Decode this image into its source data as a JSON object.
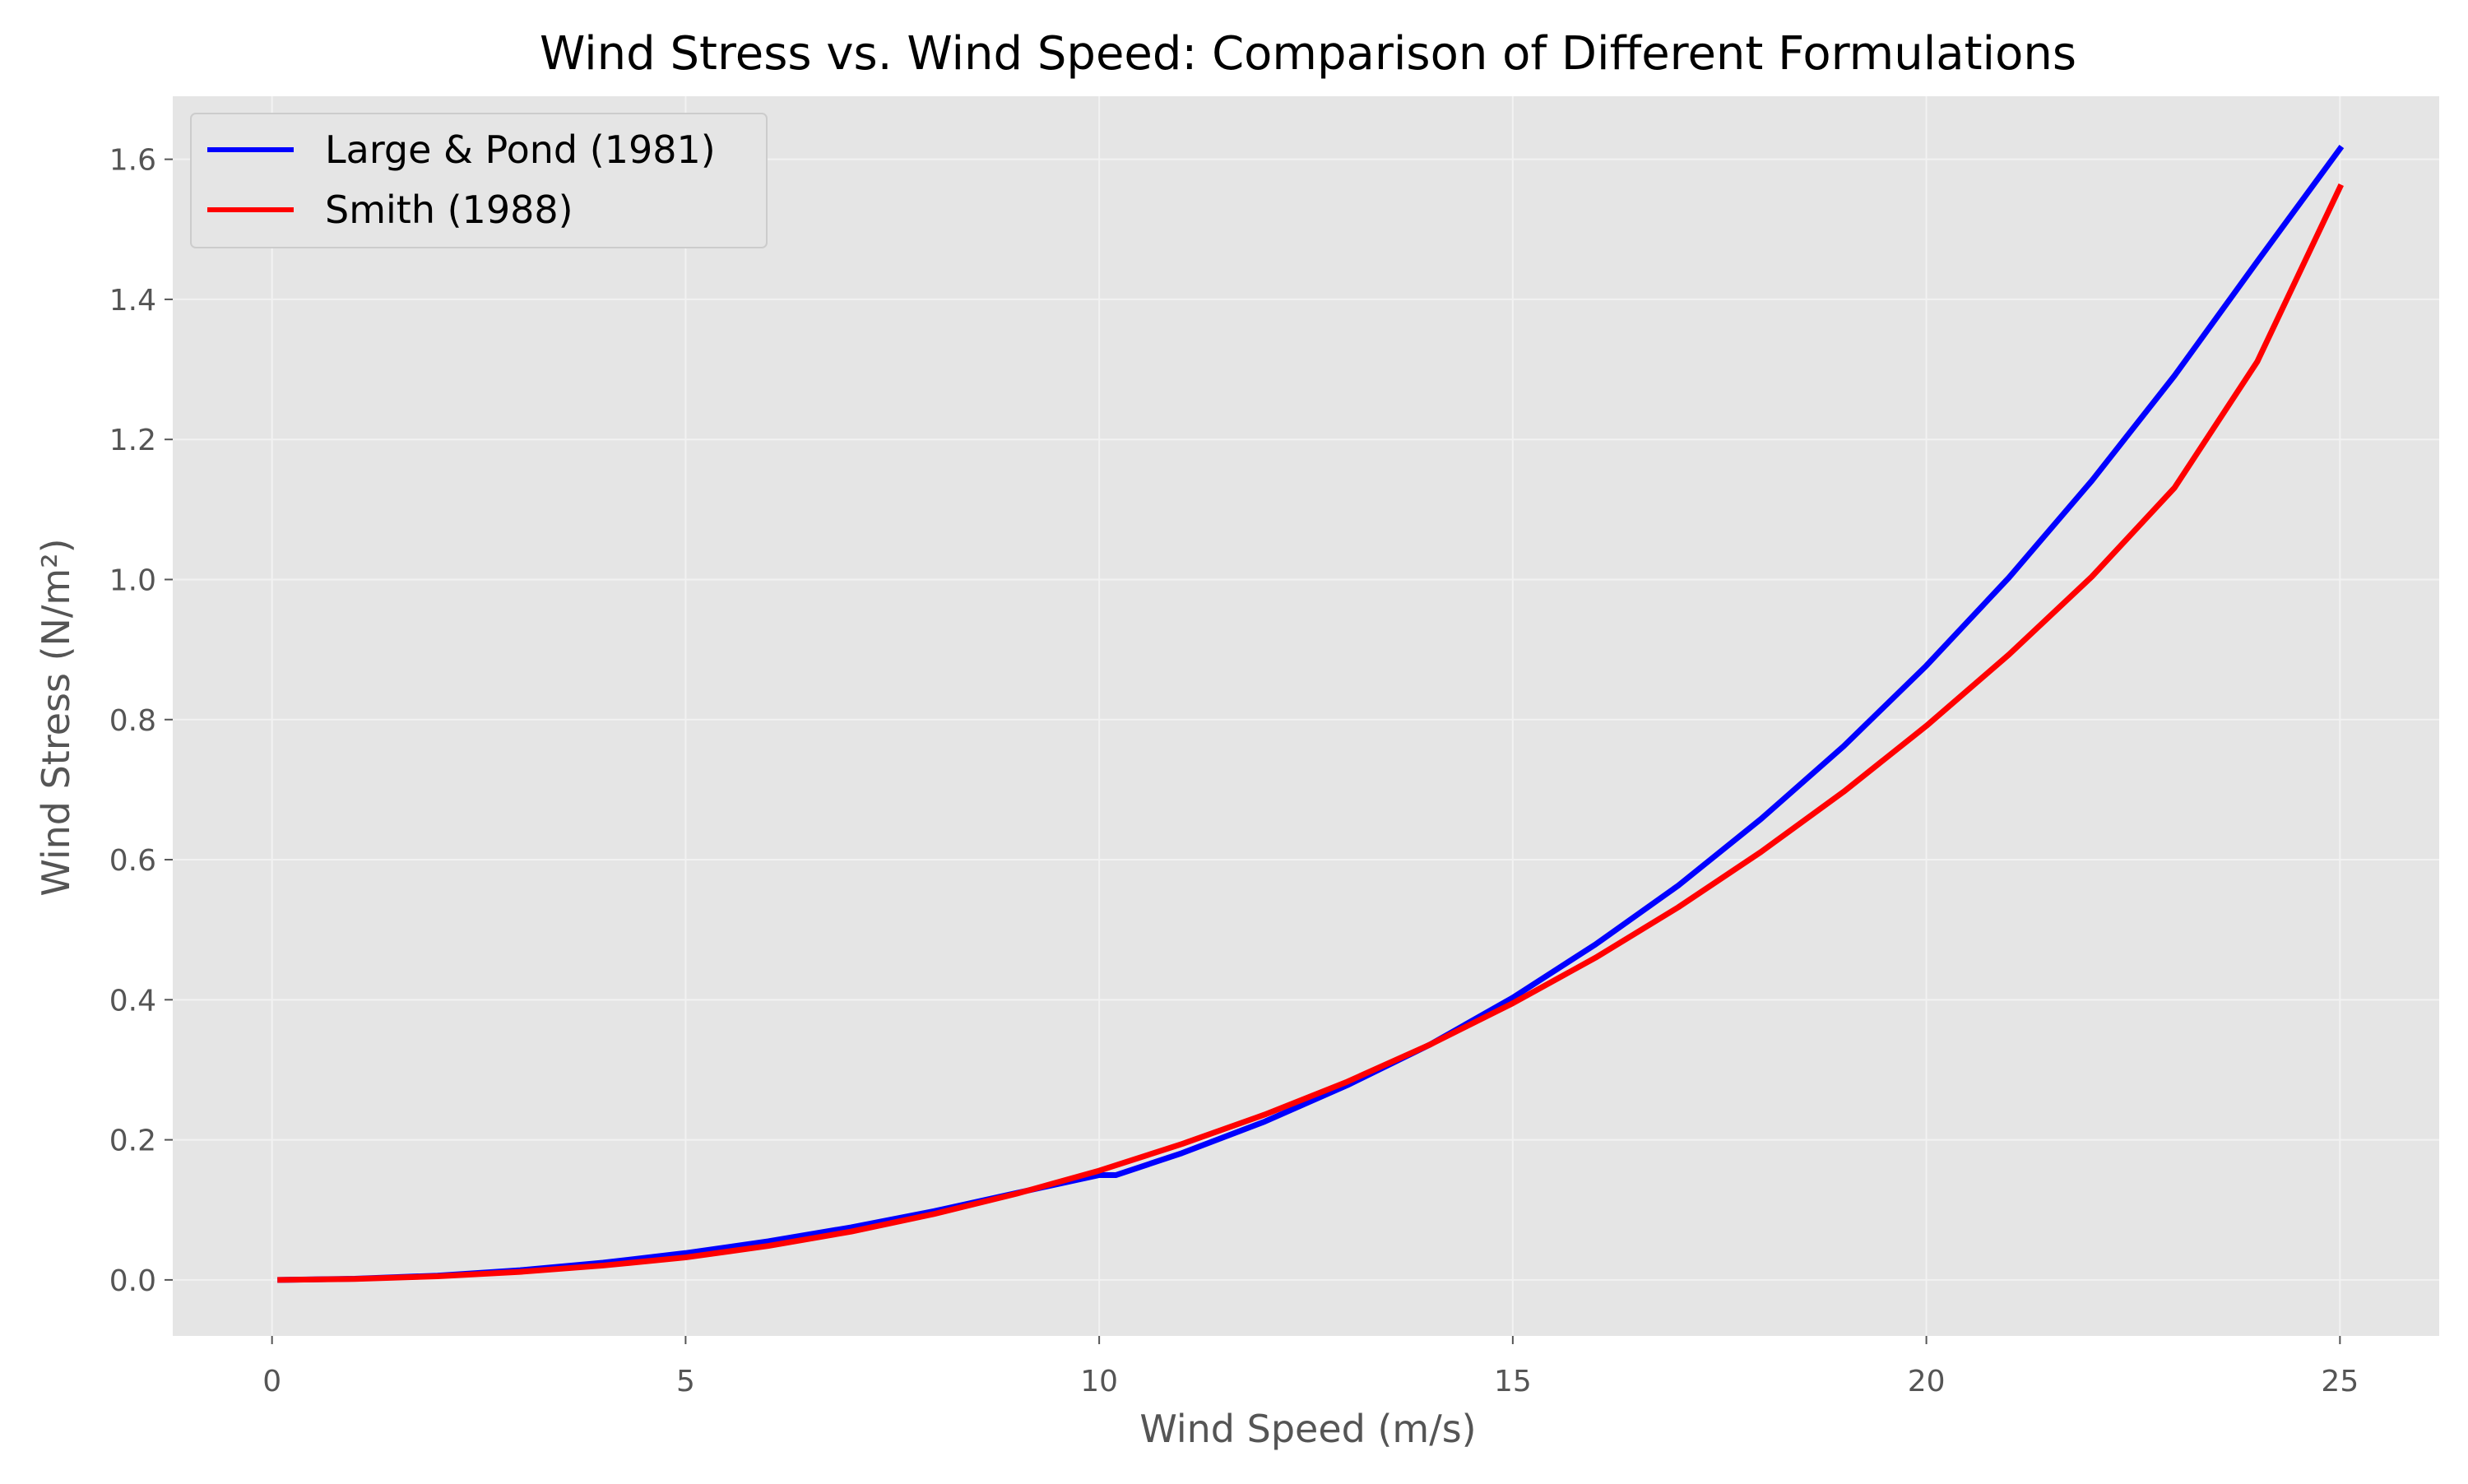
{
  "chart_data": {
    "type": "line",
    "title": "Wind Stress vs. Wind Speed: Comparison of Different Formulations",
    "xlabel": "Wind Speed (m/s)",
    "ylabel": "Wind Stress (N/m²)",
    "xlim": [
      -1.2,
      26.2
    ],
    "ylim": [
      -0.08,
      1.69
    ],
    "xticks": [
      0,
      5,
      10,
      15,
      20,
      25
    ],
    "xtick_labels": [
      "0",
      "5",
      "10",
      "15",
      "20",
      "25"
    ],
    "yticks": [
      0.0,
      0.2,
      0.4,
      0.6,
      0.8,
      1.0,
      1.2,
      1.4,
      1.6
    ],
    "ytick_labels": [
      "0.0",
      "0.2",
      "0.4",
      "0.6",
      "0.8",
      "1.0",
      "1.2",
      "1.4",
      "1.6"
    ],
    "grid": true,
    "legend_position": "top-left",
    "colors": {
      "plot_background": "#e5e5e5",
      "grid": "#f2f2f2",
      "axis_text": "#555555"
    },
    "series": [
      {
        "name": "Large & Pond (1981)",
        "color": "#0000ff",
        "x": [
          0.1,
          1,
          2,
          3,
          4,
          5,
          6,
          7,
          8,
          9,
          10,
          10.2,
          11,
          12,
          13,
          14,
          15,
          16,
          17,
          18,
          19,
          20,
          21,
          22,
          23,
          24,
          25
        ],
        "y": [
          0.0,
          0.0016,
          0.0061,
          0.0138,
          0.0245,
          0.0383,
          0.0551,
          0.075,
          0.098,
          0.124,
          0.1497,
          0.1496,
          0.181,
          0.226,
          0.278,
          0.336,
          0.403,
          0.479,
          0.563,
          0.658,
          0.762,
          0.877,
          1.003,
          1.141,
          1.291,
          1.454,
          1.615
        ]
      },
      {
        "name": "Smith (1988)",
        "color": "#ff0000",
        "x": [
          0.1,
          1,
          2,
          3,
          4,
          5,
          6,
          7,
          8,
          9,
          10,
          11,
          12,
          13,
          14,
          15,
          16,
          17,
          18,
          19,
          20,
          21,
          22,
          23,
          24,
          25
        ],
        "y": [
          0.0,
          0.0013,
          0.0051,
          0.0115,
          0.0205,
          0.0321,
          0.0485,
          0.069,
          0.094,
          0.123,
          0.156,
          0.194,
          0.236,
          0.283,
          0.336,
          0.395,
          0.46,
          0.532,
          0.611,
          0.697,
          0.791,
          0.893,
          1.004,
          1.131,
          1.311,
          1.56
        ]
      }
    ]
  }
}
